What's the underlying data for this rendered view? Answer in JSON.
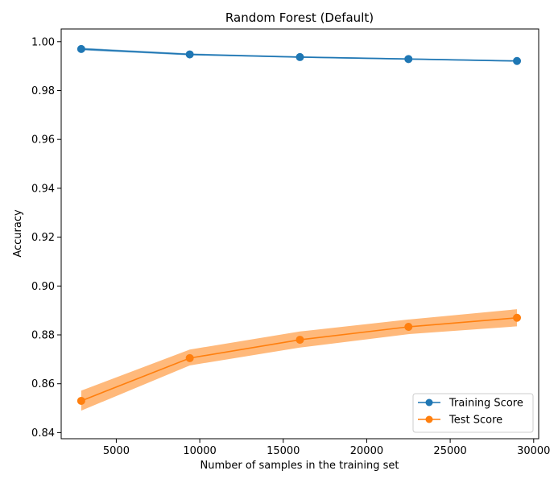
{
  "chart_data": {
    "type": "line",
    "title": "Random Forest (Default)",
    "xlabel": "Number of samples in the training set",
    "ylabel": "Accuracy",
    "xlim": [
      1700,
      30300
    ],
    "ylim": [
      0.8375,
      1.0052
    ],
    "xticks": [
      5000,
      10000,
      15000,
      20000,
      25000,
      30000
    ],
    "yticks": [
      0.84,
      0.86,
      0.88,
      0.9,
      0.92,
      0.94,
      0.96,
      0.98,
      1.0
    ],
    "xtick_labels": [
      "5000",
      "10000",
      "15000",
      "20000",
      "25000",
      "30000"
    ],
    "ytick_labels": [
      "0.84",
      "0.86",
      "0.88",
      "0.90",
      "0.92",
      "0.94",
      "0.96",
      "0.98",
      "1.00"
    ],
    "grid": false,
    "legend_position": "lower-right",
    "x": [
      2900,
      9400,
      16000,
      22500,
      29000
    ],
    "series": [
      {
        "name": "Training Score",
        "color": "#1f77b4",
        "band_color": "#1f77b4",
        "values": [
          0.997,
          0.9948,
          0.9937,
          0.9929,
          0.9921
        ],
        "lower": [
          0.9965,
          0.9944,
          0.9934,
          0.9926,
          0.9918
        ],
        "upper": [
          0.9975,
          0.9952,
          0.994,
          0.9932,
          0.9924
        ]
      },
      {
        "name": "Test Score",
        "color": "#ff7f0e",
        "band_color": "#ff7f0e",
        "values": [
          0.853,
          0.8705,
          0.878,
          0.8833,
          0.887
        ],
        "lower": [
          0.849,
          0.8675,
          0.8748,
          0.8803,
          0.8835
        ],
        "upper": [
          0.8572,
          0.874,
          0.8814,
          0.8863,
          0.8905
        ]
      }
    ]
  }
}
